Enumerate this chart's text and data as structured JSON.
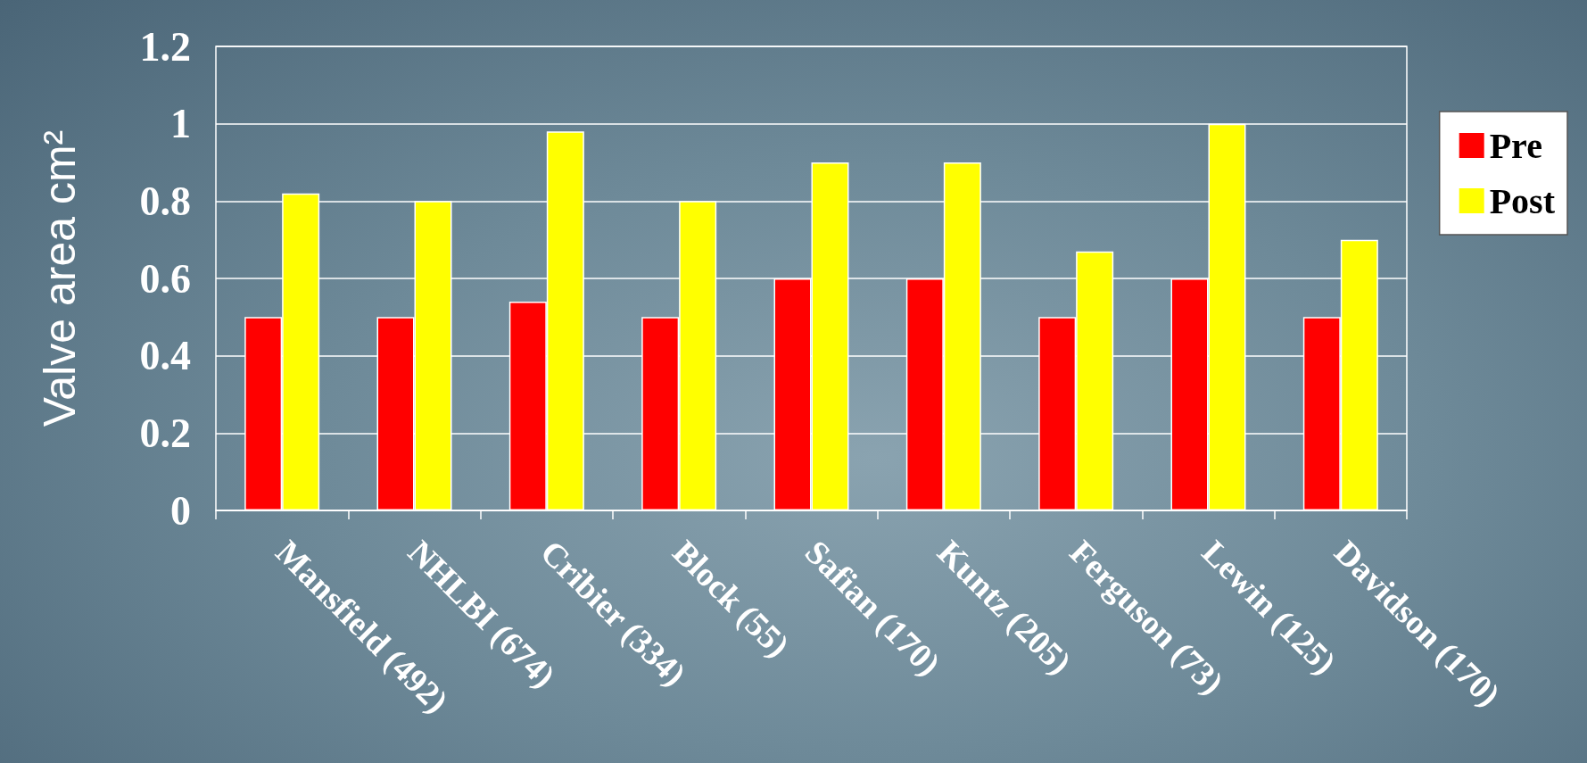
{
  "chart_data": {
    "type": "bar",
    "ylabel": "Valve area cm²",
    "categories": [
      "Mansfield (492)",
      "NHLBI (674)",
      "Cribier (334)",
      "Block (55)",
      "Safian (170)",
      "Kuntz (205)",
      "Ferguson (73)",
      "Lewin (125)",
      "Davidson (170)"
    ],
    "series": [
      {
        "name": "Pre",
        "color": "#ff0000",
        "values": [
          0.5,
          0.5,
          0.54,
          0.5,
          0.6,
          0.6,
          0.5,
          0.6,
          0.5
        ]
      },
      {
        "name": "Post",
        "color": "#ffff00",
        "values": [
          0.82,
          0.8,
          0.98,
          0.8,
          0.9,
          0.9,
          0.67,
          1.0,
          0.7
        ]
      }
    ],
    "ylim": [
      0,
      1.2
    ],
    "yticks": [
      0,
      0.2,
      0.4,
      0.6,
      0.8,
      1,
      1.2
    ],
    "grid": "y",
    "legend": "right"
  }
}
